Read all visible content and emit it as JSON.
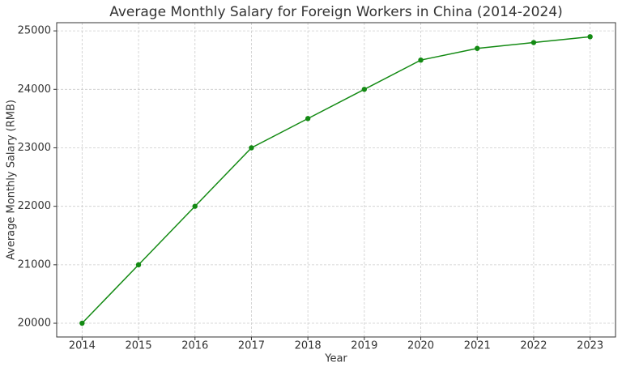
{
  "chart_data": {
    "type": "line",
    "title": "Average Monthly Salary for Foreign Workers in China (2014-2024)",
    "x_label": "Year",
    "y_label": "Average Monthly Salary (RMB)",
    "x": [
      2014,
      2015,
      2016,
      2017,
      2018,
      2019,
      2020,
      2021,
      2022,
      2023
    ],
    "series": [
      {
        "name": "Average Monthly Salary",
        "color": "#138a13",
        "values": [
          20000,
          21000,
          22000,
          23000,
          23500,
          24000,
          24500,
          24700,
          24800,
          24900
        ]
      }
    ],
    "xlim": [
      2013.55,
      2023.45
    ],
    "ylim": [
      19765,
      25140
    ],
    "xticks": [
      2014,
      2015,
      2016,
      2017,
      2018,
      2019,
      2020,
      2021,
      2022,
      2023
    ],
    "yticks": [
      20000,
      21000,
      22000,
      23000,
      24000,
      25000
    ],
    "grid": true
  }
}
